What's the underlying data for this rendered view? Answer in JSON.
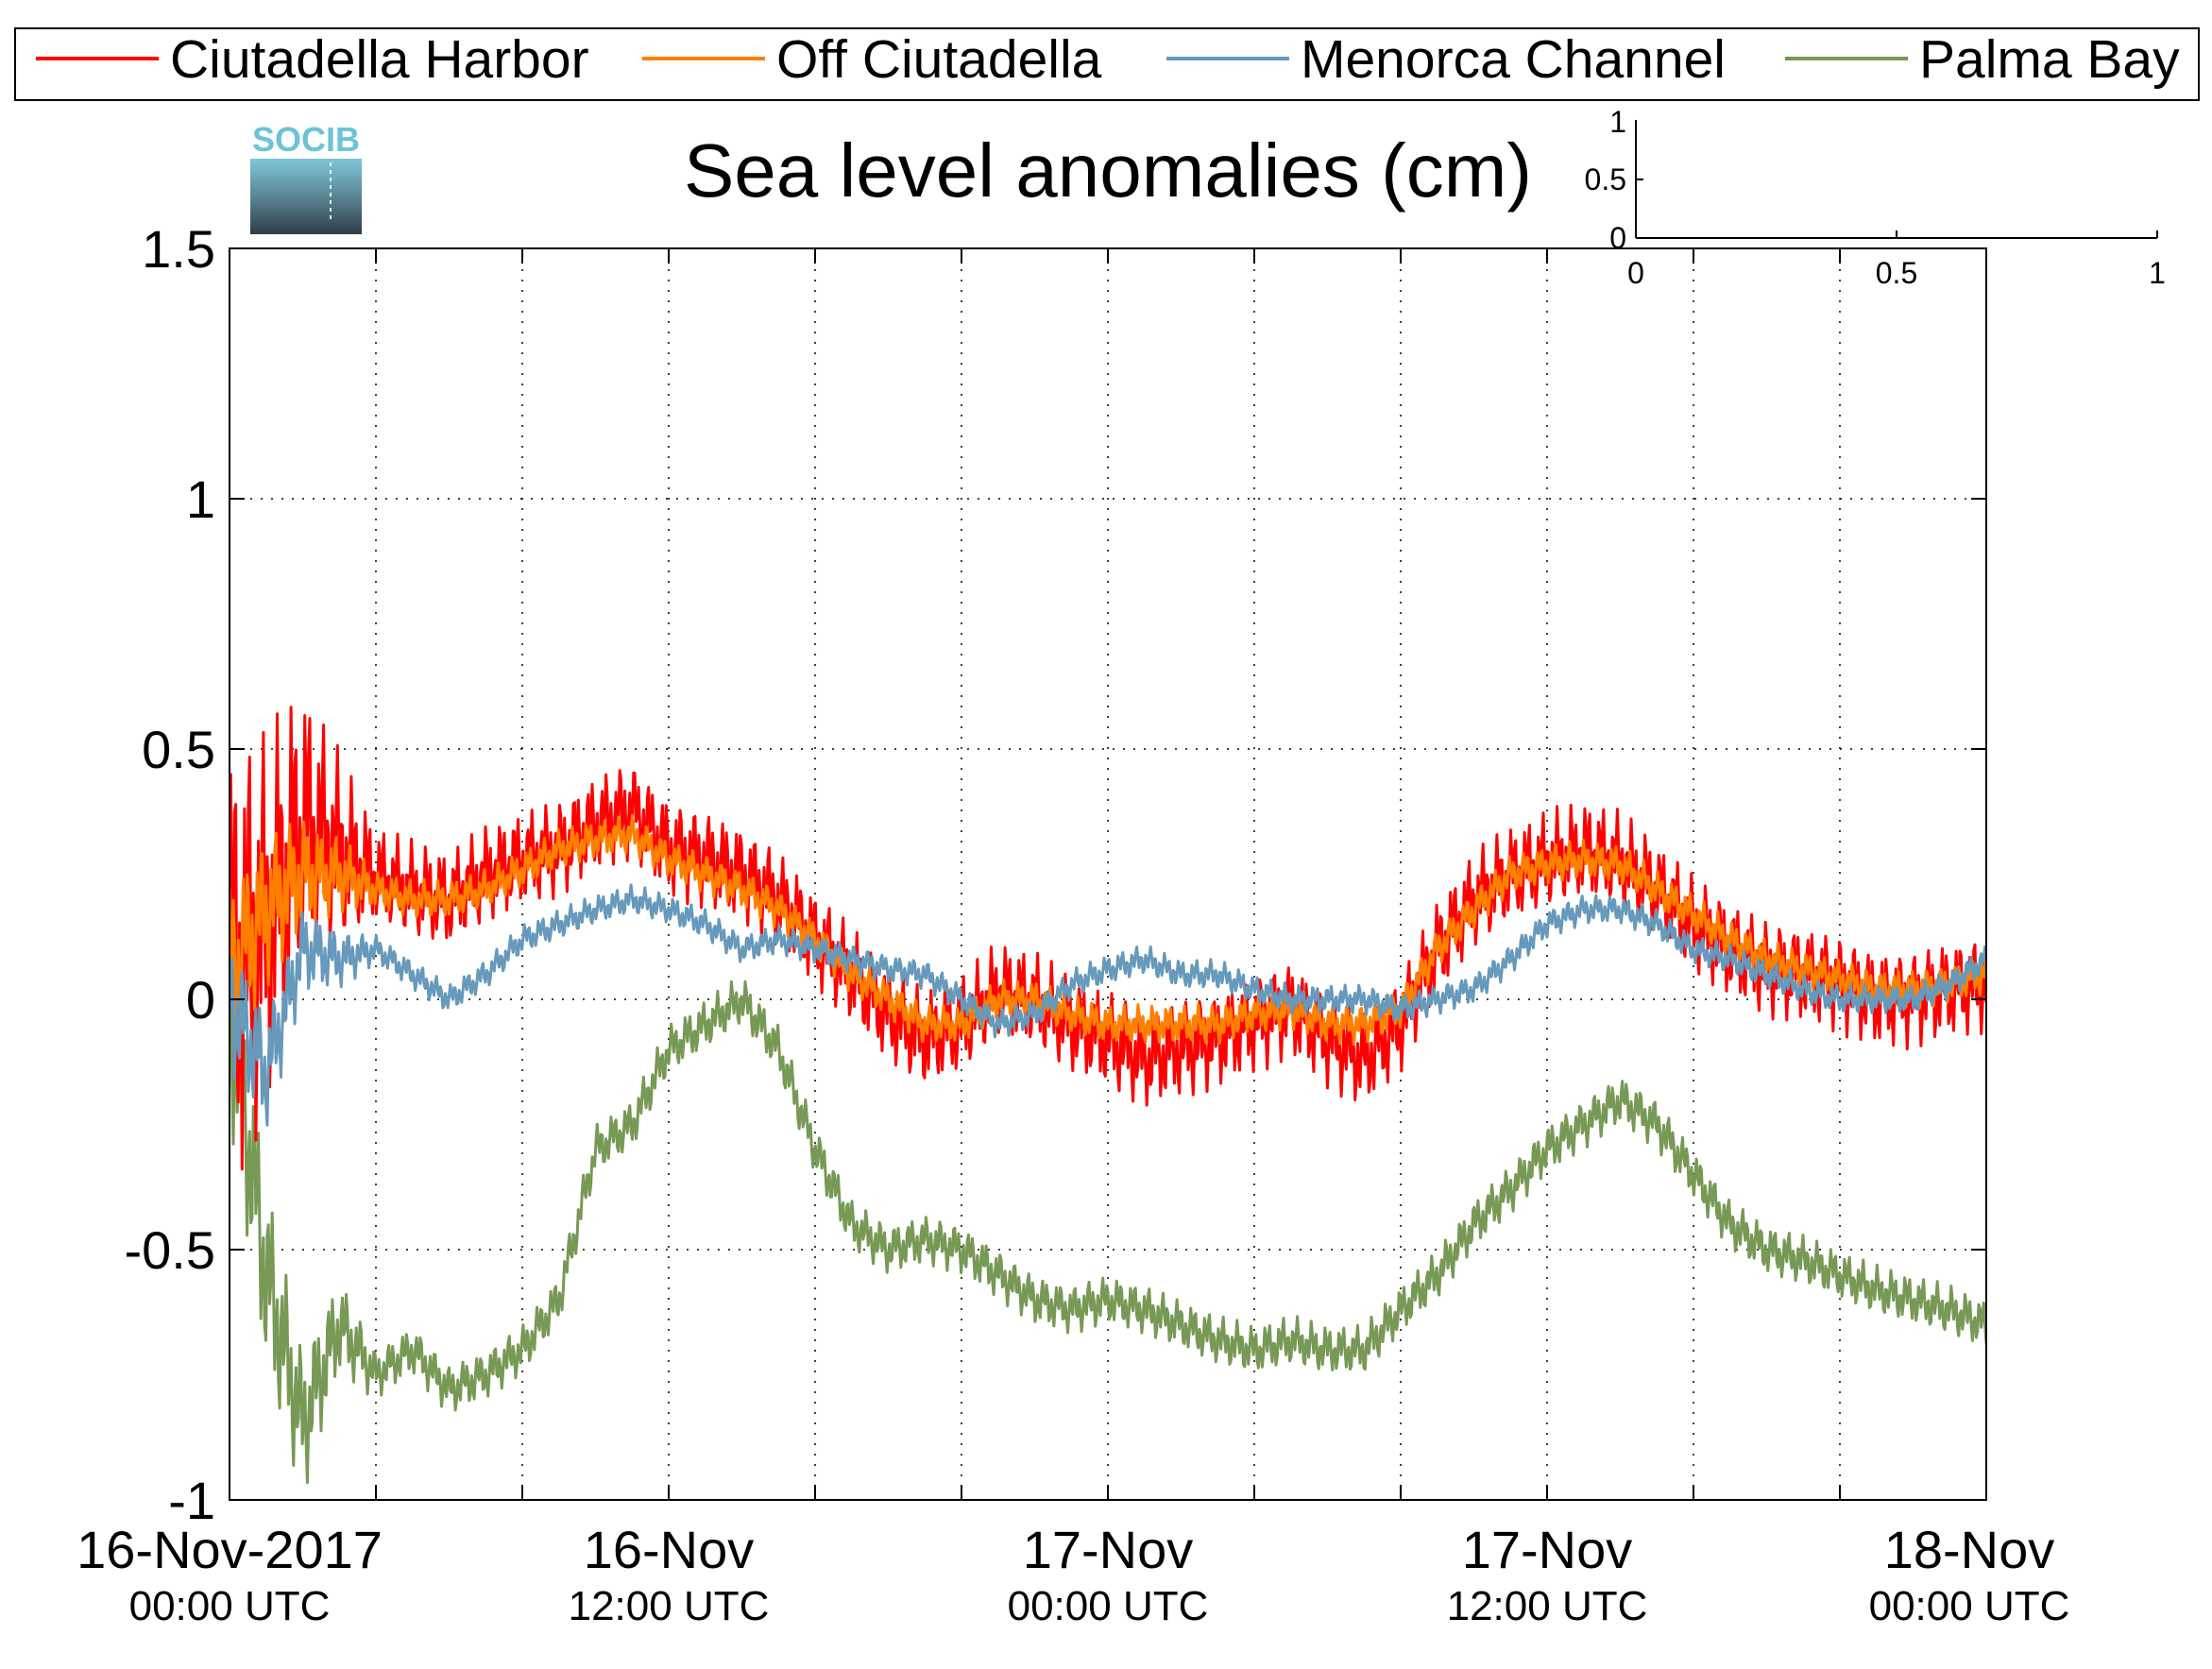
{
  "chart_data": {
    "type": "line",
    "title": "Sea level anomalies (cm)",
    "xlabel": "",
    "ylabel": "",
    "x_range": [
      "2017-11-16T00:00Z",
      "2017-11-18T00:00Z"
    ],
    "ylim": [
      -1,
      1.5
    ],
    "y_ticks": [
      "1.5",
      "1",
      "0.5",
      "0",
      "-0.5",
      "-1"
    ],
    "x_ticks": [
      {
        "line1": "16-Nov-2017",
        "line2": "00:00 UTC"
      },
      {
        "line1": "16-Nov",
        "line2": "12:00 UTC"
      },
      {
        "line1": "17-Nov",
        "line2": "00:00 UTC"
      },
      {
        "line1": "17-Nov",
        "line2": "12:00 UTC"
      },
      {
        "line1": "18-Nov",
        "line2": "00:00 UTC"
      }
    ],
    "grid": true,
    "legend_position": "top",
    "series": [
      {
        "name": "Ciutadella Harbor",
        "color": "#ff0000",
        "noise": 0.1,
        "x": [
          "2017-11-16T00:00",
          "2017-11-16T01:00",
          "2017-11-16T02:00",
          "2017-11-16T03:00",
          "2017-11-16T04:00",
          "2017-11-16T05:00",
          "2017-11-16T06:00",
          "2017-11-16T07:00",
          "2017-11-16T08:00",
          "2017-11-16T09:00",
          "2017-11-16T10:00",
          "2017-11-16T11:00",
          "2017-11-16T12:00",
          "2017-11-16T13:00",
          "2017-11-16T14:00",
          "2017-11-16T15:00",
          "2017-11-16T16:00",
          "2017-11-16T17:00",
          "2017-11-16T18:00",
          "2017-11-16T19:00",
          "2017-11-16T20:00",
          "2017-11-16T21:00",
          "2017-11-16T22:00",
          "2017-11-16T23:00",
          "2017-11-17T00:00",
          "2017-11-17T01:00",
          "2017-11-17T02:00",
          "2017-11-17T03:00",
          "2017-11-17T04:00",
          "2017-11-17T05:00",
          "2017-11-17T06:00",
          "2017-11-17T07:00",
          "2017-11-17T08:00",
          "2017-11-17T09:00",
          "2017-11-17T10:00",
          "2017-11-17T11:00",
          "2017-11-17T12:00",
          "2017-11-17T13:00",
          "2017-11-17T14:00",
          "2017-11-17T15:00",
          "2017-11-17T16:00",
          "2017-11-17T17:00",
          "2017-11-17T18:00",
          "2017-11-17T19:00",
          "2017-11-17T20:00",
          "2017-11-17T21:00",
          "2017-11-17T22:00",
          "2017-11-17T23:00",
          "2017-11-18T00:00"
        ],
        "y": [
          0.05,
          0.15,
          0.35,
          0.3,
          0.25,
          0.22,
          0.2,
          0.25,
          0.28,
          0.3,
          0.35,
          0.38,
          0.3,
          0.28,
          0.25,
          0.2,
          0.12,
          0.05,
          -0.03,
          -0.08,
          -0.05,
          0.02,
          0.0,
          -0.05,
          -0.08,
          -0.12,
          -0.1,
          -0.08,
          -0.05,
          -0.02,
          -0.08,
          -0.12,
          -0.05,
          0.1,
          0.2,
          0.25,
          0.28,
          0.3,
          0.28,
          0.22,
          0.15,
          0.1,
          0.06,
          0.05,
          0.03,
          0.0,
          0.0,
          0.02,
          0.03
        ]
      },
      {
        "name": "Off Ciutadella",
        "color": "#ff7f00",
        "noise": 0.04,
        "x": [
          "2017-11-16T00:00",
          "2017-11-16T01:00",
          "2017-11-16T02:00",
          "2017-11-16T03:00",
          "2017-11-16T04:00",
          "2017-11-16T05:00",
          "2017-11-16T06:00",
          "2017-11-16T07:00",
          "2017-11-16T08:00",
          "2017-11-16T09:00",
          "2017-11-16T10:00",
          "2017-11-16T11:00",
          "2017-11-16T12:00",
          "2017-11-16T13:00",
          "2017-11-16T14:00",
          "2017-11-16T15:00",
          "2017-11-16T16:00",
          "2017-11-16T17:00",
          "2017-11-16T18:00",
          "2017-11-16T19:00",
          "2017-11-16T20:00",
          "2017-11-16T21:00",
          "2017-11-16T22:00",
          "2017-11-16T23:00",
          "2017-11-17T00:00",
          "2017-11-17T01:00",
          "2017-11-17T02:00",
          "2017-11-17T03:00",
          "2017-11-17T04:00",
          "2017-11-17T05:00",
          "2017-11-17T06:00",
          "2017-11-17T07:00",
          "2017-11-17T08:00",
          "2017-11-17T09:00",
          "2017-11-17T10:00",
          "2017-11-17T11:00",
          "2017-11-17T12:00",
          "2017-11-17T13:00",
          "2017-11-17T14:00",
          "2017-11-17T15:00",
          "2017-11-17T16:00",
          "2017-11-17T17:00",
          "2017-11-17T18:00",
          "2017-11-17T19:00",
          "2017-11-17T20:00",
          "2017-11-17T21:00",
          "2017-11-17T22:00",
          "2017-11-17T23:00",
          "2017-11-18T00:00"
        ],
        "y": [
          0.05,
          0.18,
          0.25,
          0.25,
          0.22,
          0.2,
          0.2,
          0.22,
          0.26,
          0.3,
          0.32,
          0.33,
          0.28,
          0.25,
          0.22,
          0.18,
          0.12,
          0.05,
          0.0,
          -0.05,
          -0.05,
          0.0,
          0.0,
          -0.03,
          -0.05,
          -0.05,
          -0.05,
          -0.05,
          -0.03,
          -0.02,
          -0.05,
          -0.05,
          -0.02,
          0.1,
          0.18,
          0.25,
          0.27,
          0.28,
          0.27,
          0.22,
          0.17,
          0.12,
          0.08,
          0.06,
          0.04,
          0.02,
          0.02,
          0.03,
          0.05
        ]
      },
      {
        "name": "Menorca Channel",
        "color": "#6699bb",
        "noise": 0.03,
        "x": [
          "2017-11-16T00:00",
          "2017-11-16T01:00",
          "2017-11-16T02:00",
          "2017-11-16T03:00",
          "2017-11-16T04:00",
          "2017-11-16T05:00",
          "2017-11-16T06:00",
          "2017-11-16T07:00",
          "2017-11-16T08:00",
          "2017-11-16T09:00",
          "2017-11-16T10:00",
          "2017-11-16T11:00",
          "2017-11-16T12:00",
          "2017-11-16T13:00",
          "2017-11-16T14:00",
          "2017-11-16T15:00",
          "2017-11-16T16:00",
          "2017-11-16T17:00",
          "2017-11-16T18:00",
          "2017-11-16T19:00",
          "2017-11-16T20:00",
          "2017-11-16T21:00",
          "2017-11-16T22:00",
          "2017-11-16T23:00",
          "2017-11-17T00:00",
          "2017-11-17T01:00",
          "2017-11-17T02:00",
          "2017-11-17T03:00",
          "2017-11-17T04:00",
          "2017-11-17T05:00",
          "2017-11-17T06:00",
          "2017-11-17T07:00",
          "2017-11-17T08:00",
          "2017-11-17T09:00",
          "2017-11-17T10:00",
          "2017-11-17T11:00",
          "2017-11-17T12:00",
          "2017-11-17T13:00",
          "2017-11-17T14:00",
          "2017-11-17T15:00",
          "2017-11-17T16:00",
          "2017-11-17T17:00",
          "2017-11-17T18:00",
          "2017-11-17T19:00",
          "2017-11-17T20:00",
          "2017-11-17T21:00",
          "2017-11-17T22:00",
          "2017-11-17T23:00",
          "2017-11-18T00:00"
        ],
        "y": [
          0.0,
          -0.15,
          0.1,
          0.08,
          0.1,
          0.05,
          0.0,
          0.05,
          0.12,
          0.15,
          0.18,
          0.2,
          0.18,
          0.15,
          0.1,
          0.12,
          0.1,
          0.08,
          0.06,
          0.05,
          0.0,
          -0.05,
          -0.03,
          0.03,
          0.06,
          0.08,
          0.05,
          0.05,
          0.02,
          0.0,
          0.0,
          0.0,
          -0.02,
          0.0,
          0.02,
          0.08,
          0.15,
          0.18,
          0.18,
          0.15,
          0.1,
          0.08,
          0.05,
          0.02,
          0.0,
          0.0,
          0.0,
          0.03,
          0.08
        ]
      },
      {
        "name": "Palma Bay",
        "color": "#779955",
        "noise": 0.05,
        "x": [
          "2017-11-16T00:00",
          "2017-11-16T01:00",
          "2017-11-16T02:00",
          "2017-11-16T03:00",
          "2017-11-16T04:00",
          "2017-11-16T05:00",
          "2017-11-16T06:00",
          "2017-11-16T07:00",
          "2017-11-16T08:00",
          "2017-11-16T09:00",
          "2017-11-16T10:00",
          "2017-11-16T11:00",
          "2017-11-16T12:00",
          "2017-11-16T13:00",
          "2017-11-16T14:00",
          "2017-11-16T15:00",
          "2017-11-16T16:00",
          "2017-11-16T17:00",
          "2017-11-16T18:00",
          "2017-11-16T19:00",
          "2017-11-16T20:00",
          "2017-11-16T21:00",
          "2017-11-16T22:00",
          "2017-11-16T23:00",
          "2017-11-17T00:00",
          "2017-11-17T01:00",
          "2017-11-17T02:00",
          "2017-11-17T03:00",
          "2017-11-17T04:00",
          "2017-11-17T05:00",
          "2017-11-17T06:00",
          "2017-11-17T07:00",
          "2017-11-17T08:00",
          "2017-11-17T09:00",
          "2017-11-17T10:00",
          "2017-11-17T11:00",
          "2017-11-17T12:00",
          "2017-11-17T13:00",
          "2017-11-17T14:00",
          "2017-11-17T15:00",
          "2017-11-17T16:00",
          "2017-11-17T17:00",
          "2017-11-17T18:00",
          "2017-11-17T19:00",
          "2017-11-17T20:00",
          "2017-11-17T21:00",
          "2017-11-17T22:00",
          "2017-11-17T23:00",
          "2017-11-18T00:00"
        ],
        "y": [
          0.0,
          -0.55,
          -0.85,
          -0.65,
          -0.75,
          -0.7,
          -0.78,
          -0.75,
          -0.7,
          -0.6,
          -0.3,
          -0.25,
          -0.1,
          -0.05,
          0.0,
          -0.1,
          -0.3,
          -0.45,
          -0.5,
          -0.48,
          -0.5,
          -0.55,
          -0.6,
          -0.62,
          -0.6,
          -0.62,
          -0.65,
          -0.68,
          -0.7,
          -0.68,
          -0.7,
          -0.7,
          -0.62,
          -0.55,
          -0.45,
          -0.38,
          -0.3,
          -0.25,
          -0.2,
          -0.25,
          -0.35,
          -0.45,
          -0.5,
          -0.52,
          -0.55,
          -0.58,
          -0.6,
          -0.62,
          -0.65
        ]
      }
    ],
    "inset": {
      "ticks": [
        "0",
        "0.5",
        "1"
      ]
    },
    "logo": {
      "text": "SOCIB"
    }
  }
}
